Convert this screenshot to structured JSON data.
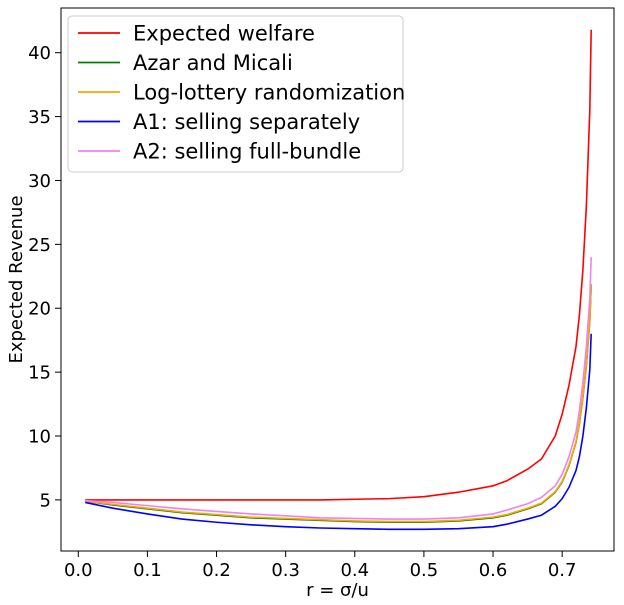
{
  "chart_data": {
    "type": "line",
    "title": "",
    "xlabel": "r = σ/u",
    "ylabel": "Expected Revenue",
    "xlim": [
      -0.025,
      0.775
    ],
    "ylim": [
      1.0,
      43.5
    ],
    "xticks": [
      0.0,
      0.1,
      0.2,
      0.3,
      0.4,
      0.5,
      0.6,
      0.7
    ],
    "xtick_labels": [
      "0.0",
      "0.1",
      "0.2",
      "0.3",
      "0.4",
      "0.5",
      "0.6",
      "0.7"
    ],
    "yticks": [
      5,
      10,
      15,
      20,
      25,
      30,
      35,
      40
    ],
    "ytick_labels": [
      "5",
      "10",
      "15",
      "20",
      "25",
      "30",
      "35",
      "40"
    ],
    "grid": false,
    "legend_position": "top-left",
    "x": [
      0.01,
      0.05,
      0.1,
      0.15,
      0.2,
      0.25,
      0.3,
      0.35,
      0.4,
      0.45,
      0.5,
      0.55,
      0.6,
      0.62,
      0.65,
      0.67,
      0.69,
      0.7,
      0.71,
      0.72,
      0.725,
      0.73,
      0.735,
      0.74,
      0.742
    ],
    "series": [
      {
        "name": "Expected welfare",
        "color": "#ff0000",
        "values": [
          5.0,
          5.0,
          5.0,
          5.0,
          5.0,
          5.0,
          5.0,
          5.0,
          5.05,
          5.1,
          5.25,
          5.6,
          6.1,
          6.5,
          7.4,
          8.2,
          10.0,
          11.7,
          14.0,
          17.0,
          19.5,
          23.0,
          28.0,
          35.5,
          41.8
        ]
      },
      {
        "name": "Azar and Micali",
        "color": "#008000",
        "values": [
          4.9,
          4.6,
          4.3,
          4.0,
          3.8,
          3.6,
          3.5,
          3.4,
          3.3,
          3.25,
          3.25,
          3.35,
          3.6,
          3.8,
          4.3,
          4.7,
          5.6,
          6.4,
          7.7,
          9.5,
          11.0,
          13.0,
          15.5,
          19.0,
          21.8
        ]
      },
      {
        "name": "Log-lottery randomization",
        "color": "#ffa500",
        "values": [
          4.9,
          4.65,
          4.35,
          4.05,
          3.85,
          3.65,
          3.55,
          3.45,
          3.35,
          3.3,
          3.3,
          3.4,
          3.65,
          3.85,
          4.35,
          4.75,
          5.65,
          6.45,
          7.75,
          9.55,
          11.1,
          13.1,
          15.6,
          19.1,
          21.9
        ]
      },
      {
        "name": "A1: selling separately",
        "color": "#0000ff",
        "values": [
          4.8,
          4.35,
          3.9,
          3.5,
          3.25,
          3.05,
          2.9,
          2.8,
          2.75,
          2.7,
          2.7,
          2.75,
          2.9,
          3.1,
          3.5,
          3.8,
          4.5,
          5.1,
          6.0,
          7.3,
          8.4,
          10.0,
          12.2,
          15.2,
          18.0
        ]
      },
      {
        "name": "A2: selling full-bundle",
        "color": "#ee82ee",
        "values": [
          4.95,
          4.8,
          4.55,
          4.3,
          4.1,
          3.9,
          3.75,
          3.6,
          3.55,
          3.5,
          3.5,
          3.6,
          3.9,
          4.2,
          4.7,
          5.2,
          6.1,
          7.0,
          8.4,
          10.3,
          12.0,
          14.2,
          17.0,
          20.8,
          24.0
        ]
      }
    ]
  }
}
